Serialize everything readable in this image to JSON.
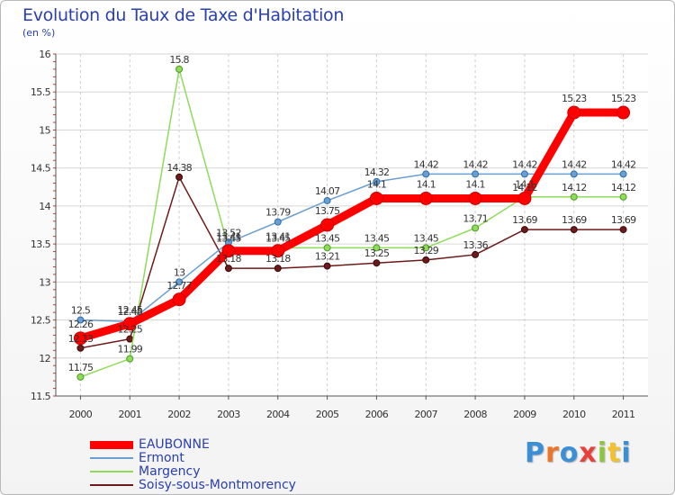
{
  "title": "Evolution du Taux de Taxe d'Habitation",
  "subtitle": "(en %)",
  "logo": "Proxiti",
  "chart_data": {
    "type": "line",
    "title": "Evolution du Taux de Taxe d'Habitation",
    "ylabel": "(en %)",
    "xlabel": "",
    "x": [
      "2000",
      "2001",
      "2002",
      "2003",
      "2004",
      "2005",
      "2006",
      "2007",
      "2008",
      "2009",
      "2010",
      "2011"
    ],
    "ylim": [
      11.5,
      16
    ],
    "yticks": [
      "11.5",
      "12",
      "12.5",
      "13",
      "13.5",
      "14",
      "14.5",
      "15",
      "15.5",
      "16"
    ],
    "grid": true,
    "legend": "bottom-left",
    "series": [
      {
        "name": "EAUBONNE",
        "color": "#ff0000",
        "values": [
          12.26,
          12.45,
          12.77,
          13.41,
          13.41,
          13.75,
          14.1,
          14.1,
          14.1,
          14.1,
          15.23,
          15.23
        ],
        "labels": [
          "12.26",
          "12.45",
          "12.77",
          "13.41",
          "13.41",
          "13.75",
          "14.1",
          "14.1",
          "14.1",
          "14.1",
          "15.23",
          "15.23"
        ]
      },
      {
        "name": "Ermont",
        "color": "#6a9fd0",
        "values": [
          12.5,
          12.48,
          13,
          13.52,
          13.79,
          14.07,
          14.32,
          14.42,
          14.42,
          14.42,
          14.42,
          14.42
        ],
        "labels": [
          "12.5",
          "12.48",
          "13",
          "13.52",
          "13.79",
          "14.07",
          "14.32",
          "14.42",
          "14.42",
          "14.42",
          "14.42",
          "14.42"
        ]
      },
      {
        "name": "Margency",
        "color": "#8fdb5a",
        "values": [
          11.75,
          11.99,
          15.8,
          13.45,
          13.45,
          13.45,
          13.45,
          13.45,
          13.71,
          14.12,
          14.12,
          14.12
        ],
        "labels": [
          "11.75",
          "11.99",
          "15.8",
          "13.45",
          "13.45",
          "13.45",
          "13.45",
          "13.45",
          "13.71",
          "14.12",
          "14.12",
          "14.12"
        ]
      },
      {
        "name": "Soisy-sous-Montmorency",
        "color": "#6e1a1a",
        "values": [
          12.13,
          12.25,
          14.38,
          13.18,
          13.18,
          13.21,
          13.25,
          13.29,
          13.36,
          13.69,
          13.69,
          13.69
        ],
        "labels": [
          "12.13",
          "12.25",
          "14.38",
          "13.18",
          "13.18",
          "13.21",
          "13.25",
          "13.29",
          "13.36",
          "13.69",
          "13.69",
          "13.69"
        ]
      }
    ]
  }
}
